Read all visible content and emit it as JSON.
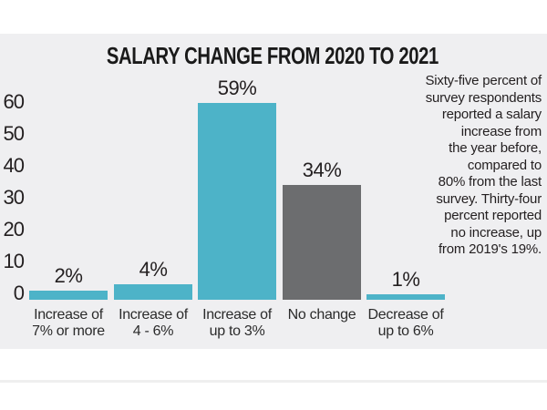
{
  "page": {
    "background": "#ffffff",
    "panel_background": "#efeff1"
  },
  "chart_data": {
    "type": "bar",
    "title": "SALARY CHANGE FROM 2020 TO 2021",
    "categories": [
      "Increase of 7% or more",
      "Increase of 4 - 6%",
      "Increase of up to 3%",
      "No change",
      "Decrease of up to 6%"
    ],
    "category_lines": [
      [
        "Increase of",
        "7% or more"
      ],
      [
        "Increase of",
        "4 - 6%"
      ],
      [
        "Increase of",
        "up to 3%"
      ],
      [
        "No change"
      ],
      [
        "Decrease of",
        "up to 6%"
      ]
    ],
    "values": [
      2,
      4,
      59,
      34,
      1
    ],
    "value_labels": [
      "2%",
      "4%",
      "59%",
      "34%",
      "1%"
    ],
    "bar_colors": [
      "#4db3c8",
      "#4db3c8",
      "#4db3c8",
      "#6c6d6f",
      "#4db3c8"
    ],
    "y_ticks": [
      60,
      50,
      40,
      30,
      20,
      10,
      0
    ],
    "ylim": [
      0,
      60
    ],
    "xlabel": "",
    "ylabel": "",
    "grid": false,
    "legend": null,
    "colors": {
      "teal": "#4db3c8",
      "gray": "#6c6d6f",
      "text": "#231f20"
    },
    "annotation_lines": [
      "Sixty-five percent of",
      "survey respondents",
      "reported a salary",
      "increase from",
      "the year before,",
      "compared to",
      "80% from the last",
      "survey. Thirty-four",
      "percent reported",
      "no increase, up",
      "from 2019's 19%."
    ],
    "annotation_text": "Sixty-five percent of survey respondents reported a salary increase from the year before, compared to 80% from the last survey. Thirty-four percent reported no increase, up from 2019's 19%."
  }
}
